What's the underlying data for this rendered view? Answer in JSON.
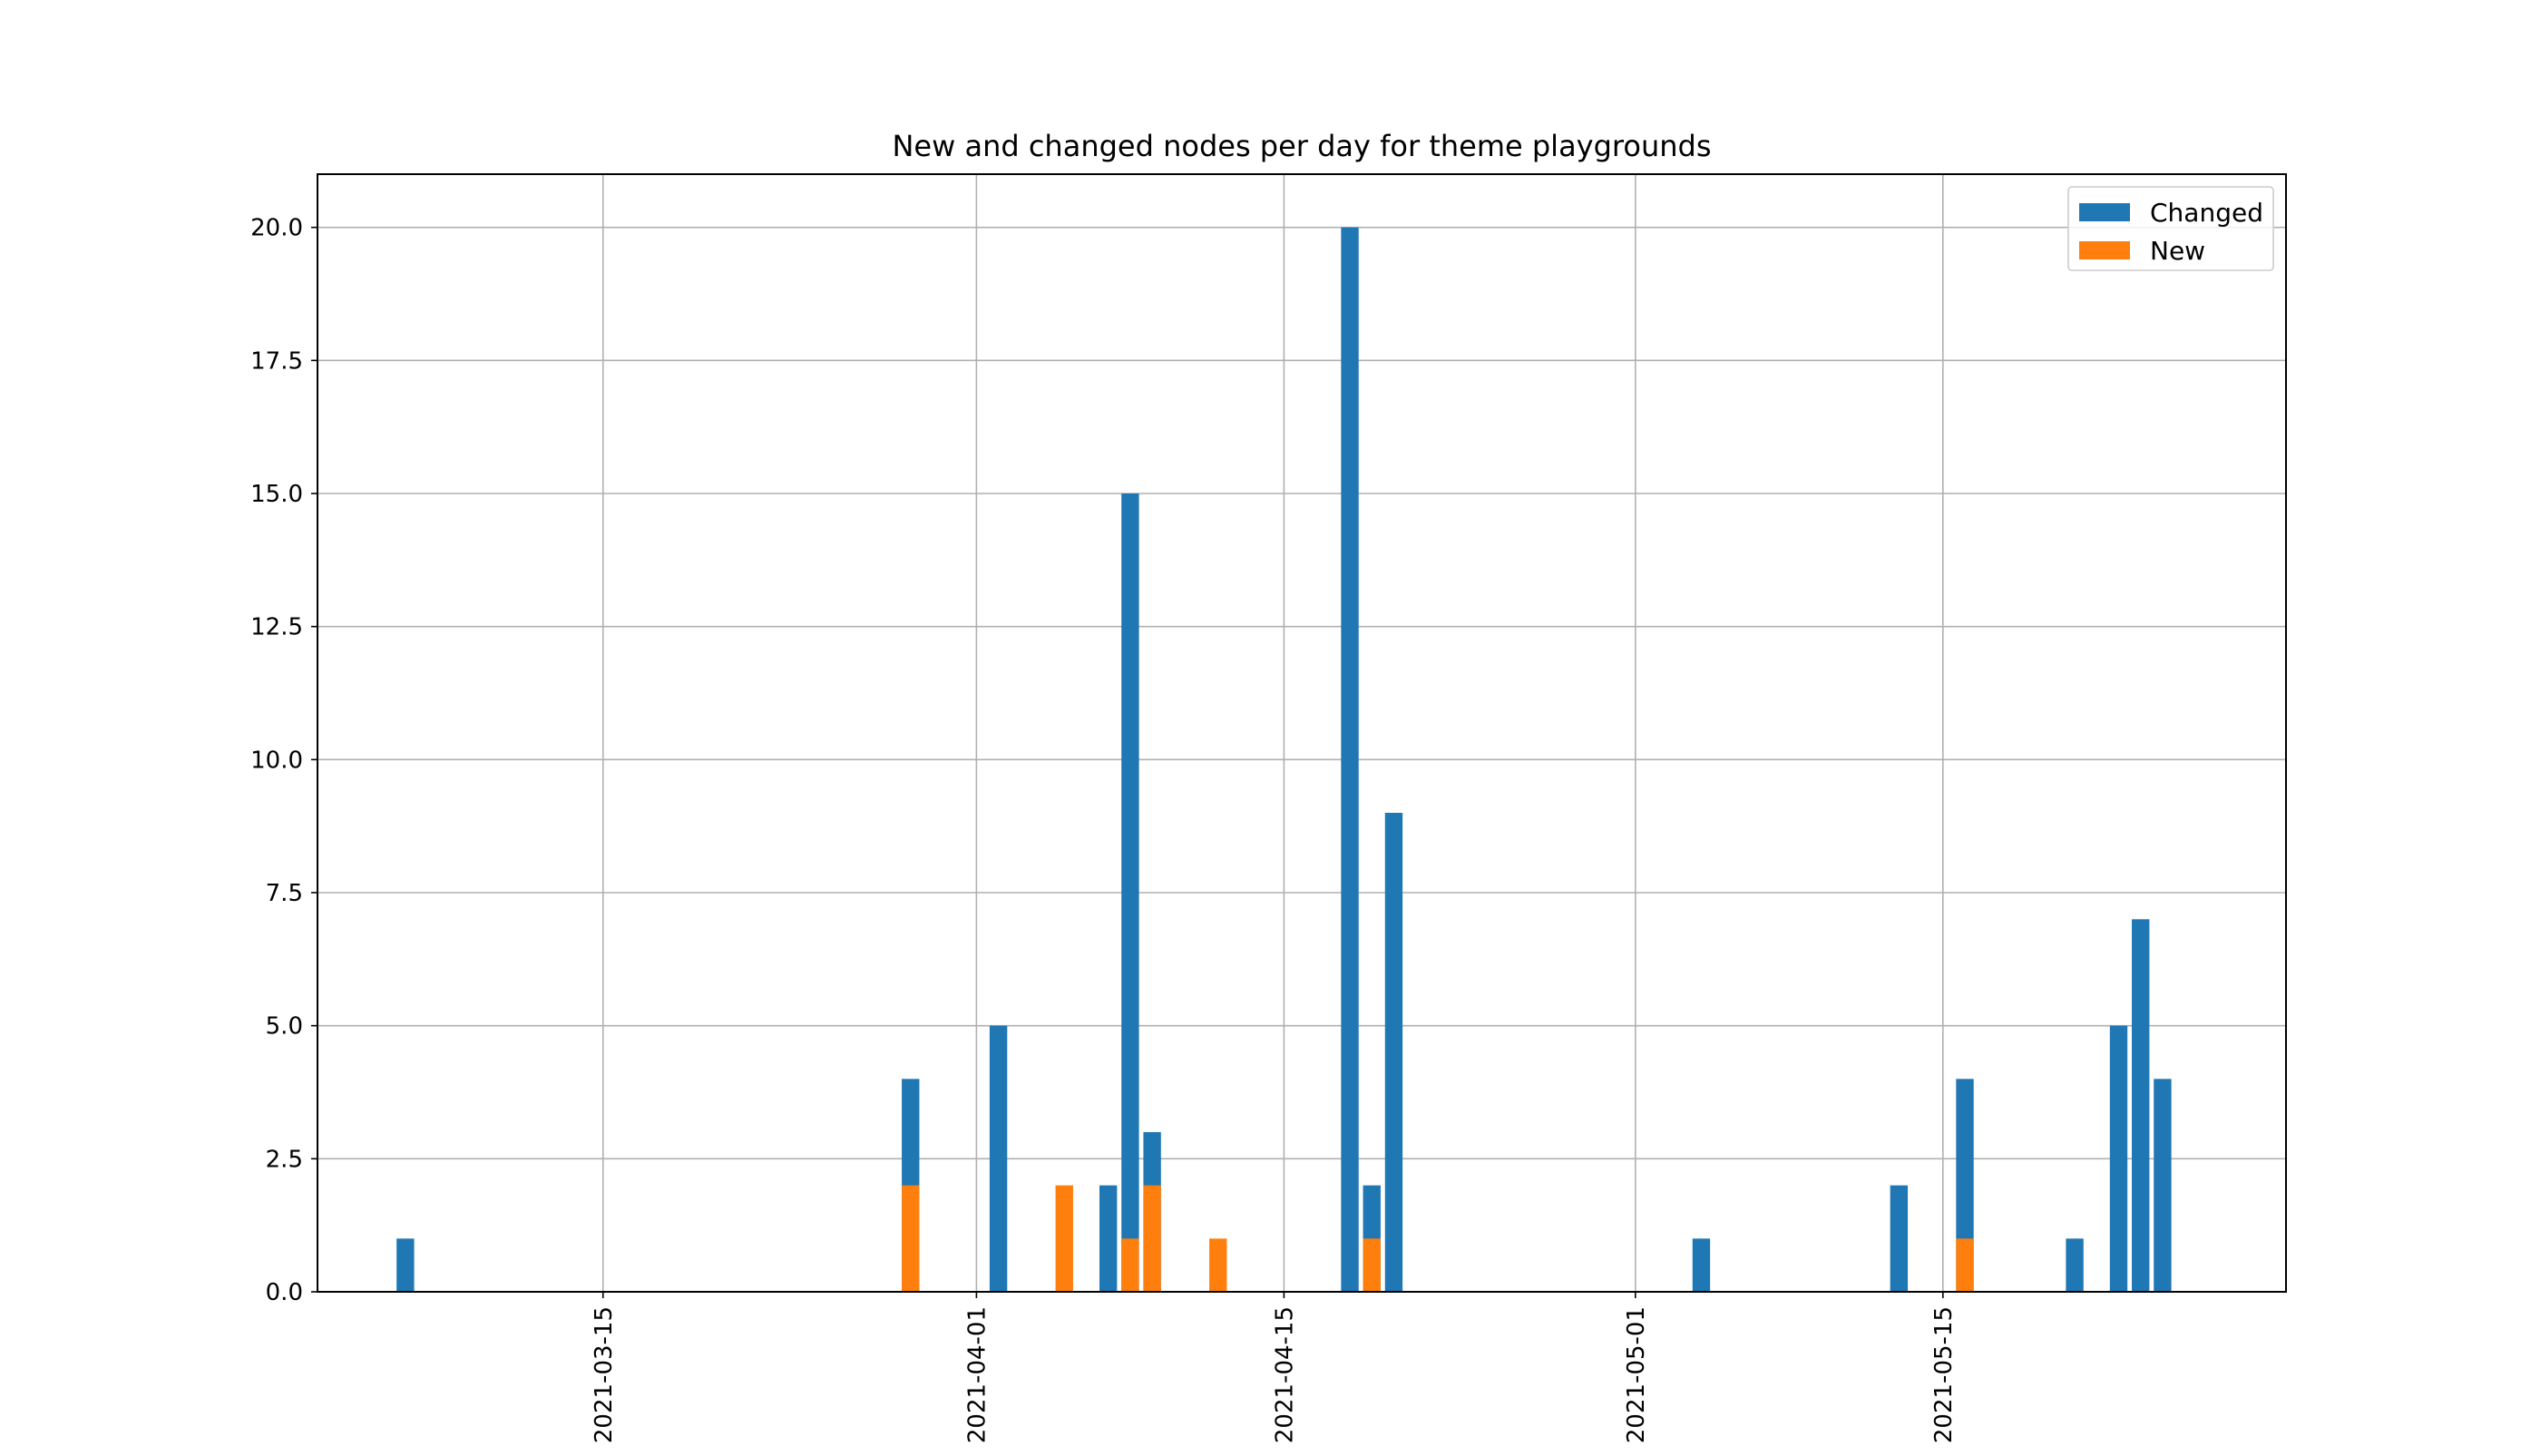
{
  "chart_data": {
    "type": "bar",
    "stacked": false,
    "title": "New and changed nodes per day for theme playgrounds",
    "xlabel": "",
    "ylabel": "",
    "x_type": "date",
    "xlim": [
      "2021-03-02",
      "2021-05-30"
    ],
    "ylim": [
      0,
      21
    ],
    "x_ticks": [
      "2021-03-15",
      "2021-04-01",
      "2021-04-15",
      "2021-05-01",
      "2021-05-15"
    ],
    "y_ticks": [
      "0.0",
      "2.5",
      "5.0",
      "7.5",
      "10.0",
      "12.5",
      "15.0",
      "17.5",
      "20.0"
    ],
    "y_tick_values": [
      0,
      2.5,
      5,
      7.5,
      10,
      12.5,
      15,
      17.5,
      20
    ],
    "grid": true,
    "legend": {
      "position": "top-right"
    },
    "series": [
      {
        "name": "Changed",
        "color": "#1f77b4",
        "points": [
          {
            "x": "2021-03-06",
            "y": 1
          },
          {
            "x": "2021-03-29",
            "y": 4
          },
          {
            "x": "2021-04-02",
            "y": 5
          },
          {
            "x": "2021-04-07",
            "y": 2
          },
          {
            "x": "2021-04-08",
            "y": 15
          },
          {
            "x": "2021-04-09",
            "y": 3
          },
          {
            "x": "2021-04-18",
            "y": 20
          },
          {
            "x": "2021-04-19",
            "y": 2
          },
          {
            "x": "2021-04-20",
            "y": 9
          },
          {
            "x": "2021-05-04",
            "y": 1
          },
          {
            "x": "2021-05-13",
            "y": 2
          },
          {
            "x": "2021-05-16",
            "y": 4
          },
          {
            "x": "2021-05-21",
            "y": 1
          },
          {
            "x": "2021-05-23",
            "y": 5
          },
          {
            "x": "2021-05-24",
            "y": 7
          },
          {
            "x": "2021-05-25",
            "y": 4
          }
        ]
      },
      {
        "name": "New",
        "color": "#ff7f0e",
        "points": [
          {
            "x": "2021-03-29",
            "y": 2
          },
          {
            "x": "2021-04-05",
            "y": 2
          },
          {
            "x": "2021-04-08",
            "y": 1
          },
          {
            "x": "2021-04-09",
            "y": 2
          },
          {
            "x": "2021-04-12",
            "y": 1
          },
          {
            "x": "2021-04-19",
            "y": 1
          },
          {
            "x": "2021-05-16",
            "y": 1
          }
        ]
      }
    ]
  }
}
